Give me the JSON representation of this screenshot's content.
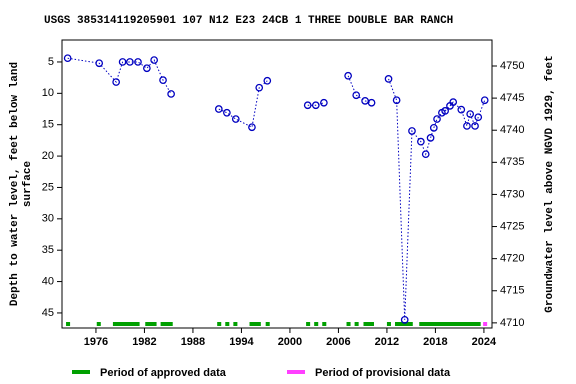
{
  "chart_data": {
    "type": "line",
    "title": "USGS 385314119205901 107  N12 E23 24CB  1    THREE DOUBLE BAR RANCH",
    "y_label": [
      "Depth to water level, feet below land",
      "surface"
    ],
    "y2_label": "Groundwater level above NGVD 1929, feet",
    "xlim": [
      1971.8,
      2025.0
    ],
    "xticks": [
      1976,
      1982,
      1988,
      1994,
      2000,
      2006,
      2012,
      2018,
      2024
    ],
    "ylim": [
      1.5,
      47.4
    ],
    "yticks": [
      5,
      10,
      15,
      20,
      25,
      30,
      35,
      40,
      45
    ],
    "y_inverted": true,
    "y2lim": [
      4754.05,
      4709.2
    ],
    "y2ticks": [
      4710,
      4715,
      4720,
      4725,
      4730,
      4735,
      4740,
      4745,
      4750
    ],
    "series": [
      {
        "color": "#0000c0",
        "x": [
          1972.5,
          1976.4,
          1978.5,
          1979.3,
          1980.2,
          1981.2,
          1982.3,
          1983.2,
          1984.3,
          1985.3,
          null,
          1991.2,
          1992.2,
          1993.3,
          1995.3,
          1996.2,
          1997.2,
          null,
          2002.2,
          2003.2,
          2004.2,
          null,
          2007.2,
          2008.2,
          2009.3,
          2010.1,
          null,
          2012.2,
          2013.2,
          2014.2,
          2015.1,
          2016.2,
          2016.8,
          2017.4,
          2017.8,
          2018.2,
          2018.8,
          2019.2,
          2019.8,
          2020.2,
          2021.2,
          2021.9,
          2022.3,
          2022.9,
          2023.3,
          2024.1
        ],
        "values": [
          4.4,
          5.2,
          8.2,
          5.0,
          5.0,
          5.0,
          6.0,
          4.7,
          7.9,
          10.1,
          null,
          12.5,
          13.1,
          14.1,
          15.4,
          9.1,
          8.0,
          null,
          11.9,
          11.9,
          11.5,
          null,
          7.2,
          10.3,
          11.2,
          11.5,
          null,
          7.7,
          11.1,
          46.1,
          16.0,
          17.7,
          19.7,
          17.1,
          15.5,
          14.1,
          13.1,
          12.8,
          12.0,
          11.4,
          12.6,
          15.2,
          13.3,
          15.2,
          13.8,
          11.1
        ]
      }
    ],
    "periods": [
      {
        "name": "Period of approved data",
        "color": "#00a000",
        "ranges": [
          [
            1972.3,
            1972.8
          ],
          [
            1976.1,
            1976.6
          ],
          [
            1978.1,
            1981.4
          ],
          [
            1982.1,
            1983.5
          ],
          [
            1984.0,
            1985.5
          ],
          [
            1991.0,
            1991.5
          ],
          [
            1992.0,
            1992.5
          ],
          [
            1993.0,
            1993.5
          ],
          [
            1995.0,
            1996.4
          ],
          [
            1997.0,
            1997.5
          ],
          [
            2002.0,
            2002.5
          ],
          [
            2003.0,
            2003.5
          ],
          [
            2004.0,
            2004.5
          ],
          [
            2007.0,
            2007.5
          ],
          [
            2008.0,
            2008.5
          ],
          [
            2009.1,
            2010.4
          ],
          [
            2012.0,
            2012.5
          ],
          [
            2013.0,
            2015.2
          ],
          [
            2016.0,
            2023.6
          ]
        ]
      },
      {
        "name": "Period of provisional data",
        "color": "#ff40ff",
        "ranges": [
          [
            2023.9,
            2024.4
          ]
        ]
      }
    ]
  }
}
